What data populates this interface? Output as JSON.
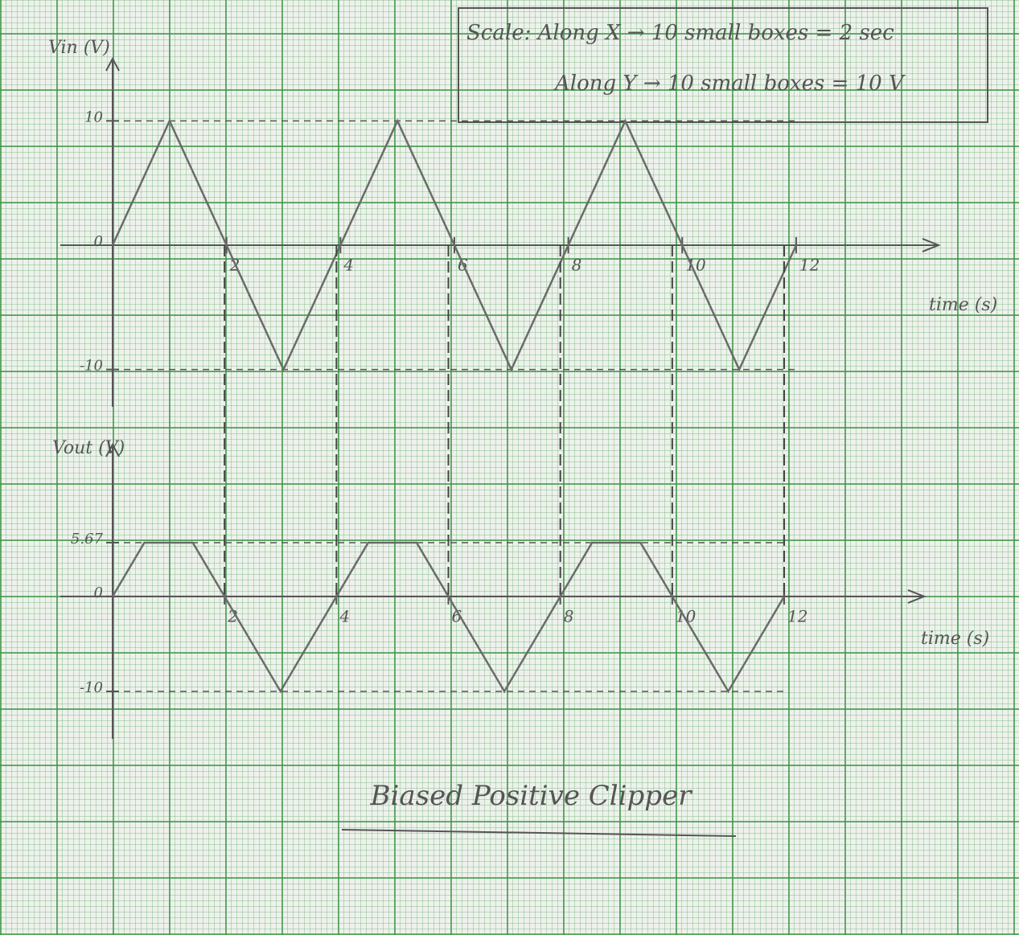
{
  "scale_note": [
    "Scale: Along X → 10 small boxes = 2 sec",
    "Along Y → 10 small boxes = 10 V"
  ],
  "title": "Biased Positive Clipper",
  "chart_data": [
    {
      "type": "line",
      "y_label": "Vin (V)",
      "x_label": "time (s)",
      "x": [
        0,
        1,
        3,
        5,
        7,
        9,
        11,
        12
      ],
      "values": [
        0,
        10,
        -10,
        10,
        -10,
        10,
        -10,
        0
      ],
      "color": "#6b6b6b",
      "xlim": [
        0,
        14.5
      ],
      "ylim": [
        -13,
        15
      ],
      "xticks": [
        2,
        4,
        6,
        8,
        10,
        12
      ],
      "yticks": [
        -10,
        0,
        10
      ]
    },
    {
      "type": "line",
      "y_label": "Vout (V)",
      "x_label": "time (s)",
      "x": [
        0,
        0.567,
        1.433,
        3,
        4.567,
        5.433,
        7,
        8.567,
        9.433,
        11,
        12
      ],
      "values": [
        0,
        5.67,
        5.67,
        -10,
        5.67,
        5.67,
        -10,
        5.67,
        5.67,
        -10,
        0
      ],
      "color": "#6b6b6b",
      "xlim": [
        0,
        14.5
      ],
      "ylim": [
        -15,
        16
      ],
      "xticks": [
        2,
        4,
        6,
        8,
        10,
        12
      ],
      "yticks": [
        -10,
        0,
        5.67
      ]
    }
  ]
}
